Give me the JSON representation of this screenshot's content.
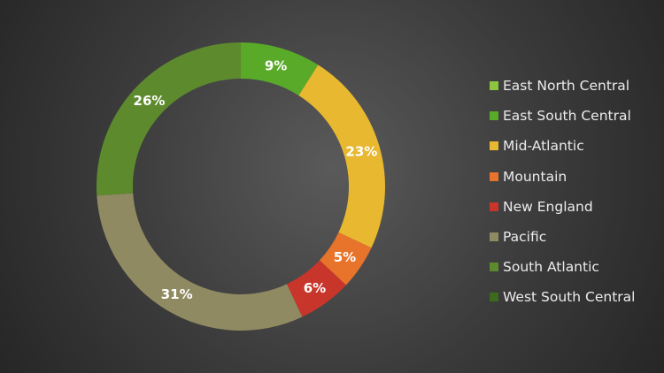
{
  "chart_data": {
    "type": "pie",
    "donut": true,
    "categories": [
      "East North Central",
      "East South Central",
      "Mid-Atlantic",
      "Mountain",
      "New England",
      "Pacific",
      "South Atlantic",
      "West South Central"
    ],
    "values": [
      0,
      9,
      23,
      5,
      6,
      31,
      26,
      0
    ],
    "data_labels": [
      "0%",
      "9%",
      "23%",
      "5%",
      "6%",
      "31%",
      "26%",
      ""
    ],
    "colors": [
      "#8cc63f",
      "#5aaa2a",
      "#e8b830",
      "#e8732a",
      "#c8352a",
      "#8f8a62",
      "#5e8a2e",
      "#3e6a1e"
    ],
    "legend_position": "right"
  }
}
